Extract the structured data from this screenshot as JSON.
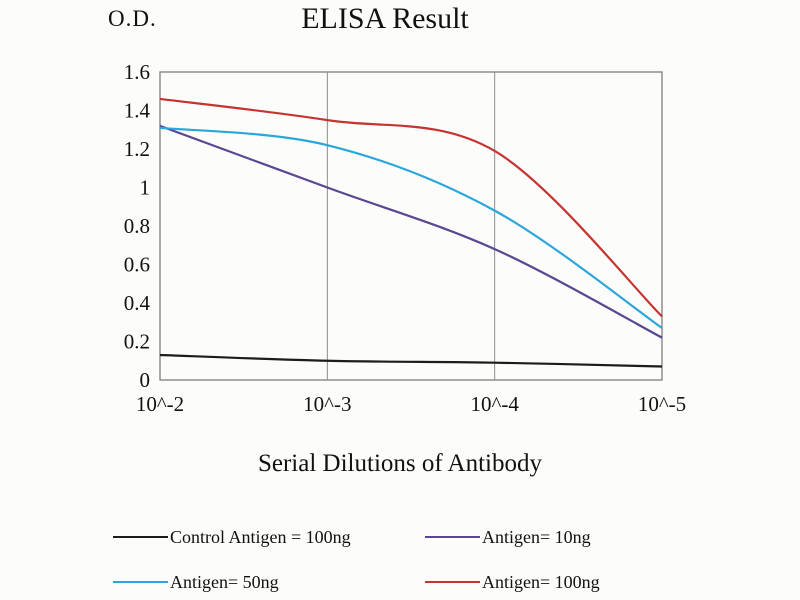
{
  "page": {
    "background": "#fcfcfa"
  },
  "chart_data": {
    "type": "line",
    "title": "ELISA Result",
    "ylabel": "O.D.",
    "xlabel": "Serial Dilutions of Antibody",
    "categories": [
      "10^-2",
      "10^-3",
      "10^-4",
      "10^-5"
    ],
    "yticks": [
      "0",
      "0.2",
      "0.4",
      "0.6",
      "0.8",
      "1",
      "1.2",
      "1.4",
      "1.6"
    ],
    "ylim": [
      0,
      1.6
    ],
    "grid": "vertical-gridlines-with-border",
    "legend_position": "bottom",
    "axis_color": "#7d7d7d",
    "gridline_color": "#8c8c8c",
    "text_color": "#111111",
    "series": [
      {
        "name": "Control Antigen = 100ng",
        "color": "#1c1c1c",
        "values": [
          0.13,
          0.1,
          0.09,
          0.07
        ]
      },
      {
        "name": "Antigen= 10ng",
        "color": "#5a4793",
        "values": [
          1.32,
          1.0,
          0.68,
          0.22
        ]
      },
      {
        "name": "Antigen= 50ng",
        "color": "#2ba6db",
        "values": [
          1.31,
          1.22,
          0.88,
          0.27
        ]
      },
      {
        "name": "Antigen= 100ng",
        "color": "#c53430",
        "values": [
          1.46,
          1.35,
          1.19,
          0.33
        ]
      }
    ]
  }
}
